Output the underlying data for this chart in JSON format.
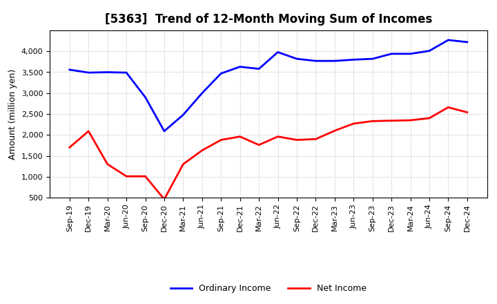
{
  "title": "[5363]  Trend of 12-Month Moving Sum of Incomes",
  "ylabel": "Amount (million yen)",
  "x_labels": [
    "Sep-19",
    "Dec-19",
    "Mar-20",
    "Jun-20",
    "Sep-20",
    "Dec-20",
    "Mar-21",
    "Jun-21",
    "Sep-21",
    "Dec-21",
    "Mar-22",
    "Jun-22",
    "Sep-22",
    "Dec-22",
    "Mar-23",
    "Jun-23",
    "Sep-23",
    "Dec-23",
    "Mar-24",
    "Jun-24",
    "Sep-24",
    "Dec-24"
  ],
  "ordinary_income": [
    3560,
    3490,
    3500,
    3490,
    2900,
    2090,
    2480,
    3000,
    3470,
    3630,
    3580,
    3980,
    3820,
    3770,
    3770,
    3800,
    3820,
    3940,
    3940,
    4010,
    4270,
    4220
  ],
  "net_income": [
    1700,
    2090,
    1300,
    1010,
    1010,
    460,
    1300,
    1630,
    1880,
    1960,
    1760,
    1960,
    1880,
    1900,
    2100,
    2270,
    2330,
    2340,
    2350,
    2400,
    2660,
    2540
  ],
  "ordinary_income_color": "#0000FF",
  "net_income_color": "#FF0000",
  "ylim": [
    500,
    4500
  ],
  "yticks": [
    500,
    1000,
    1500,
    2000,
    2500,
    3000,
    3500,
    4000
  ],
  "background_color": "#FFFFFF",
  "grid_color": "#BBBBBB",
  "line_width": 2.0,
  "title_fontsize": 12,
  "axis_fontsize": 8,
  "ylabel_fontsize": 9,
  "legend_labels": [
    "Ordinary Income",
    "Net Income"
  ],
  "legend_fontsize": 9
}
